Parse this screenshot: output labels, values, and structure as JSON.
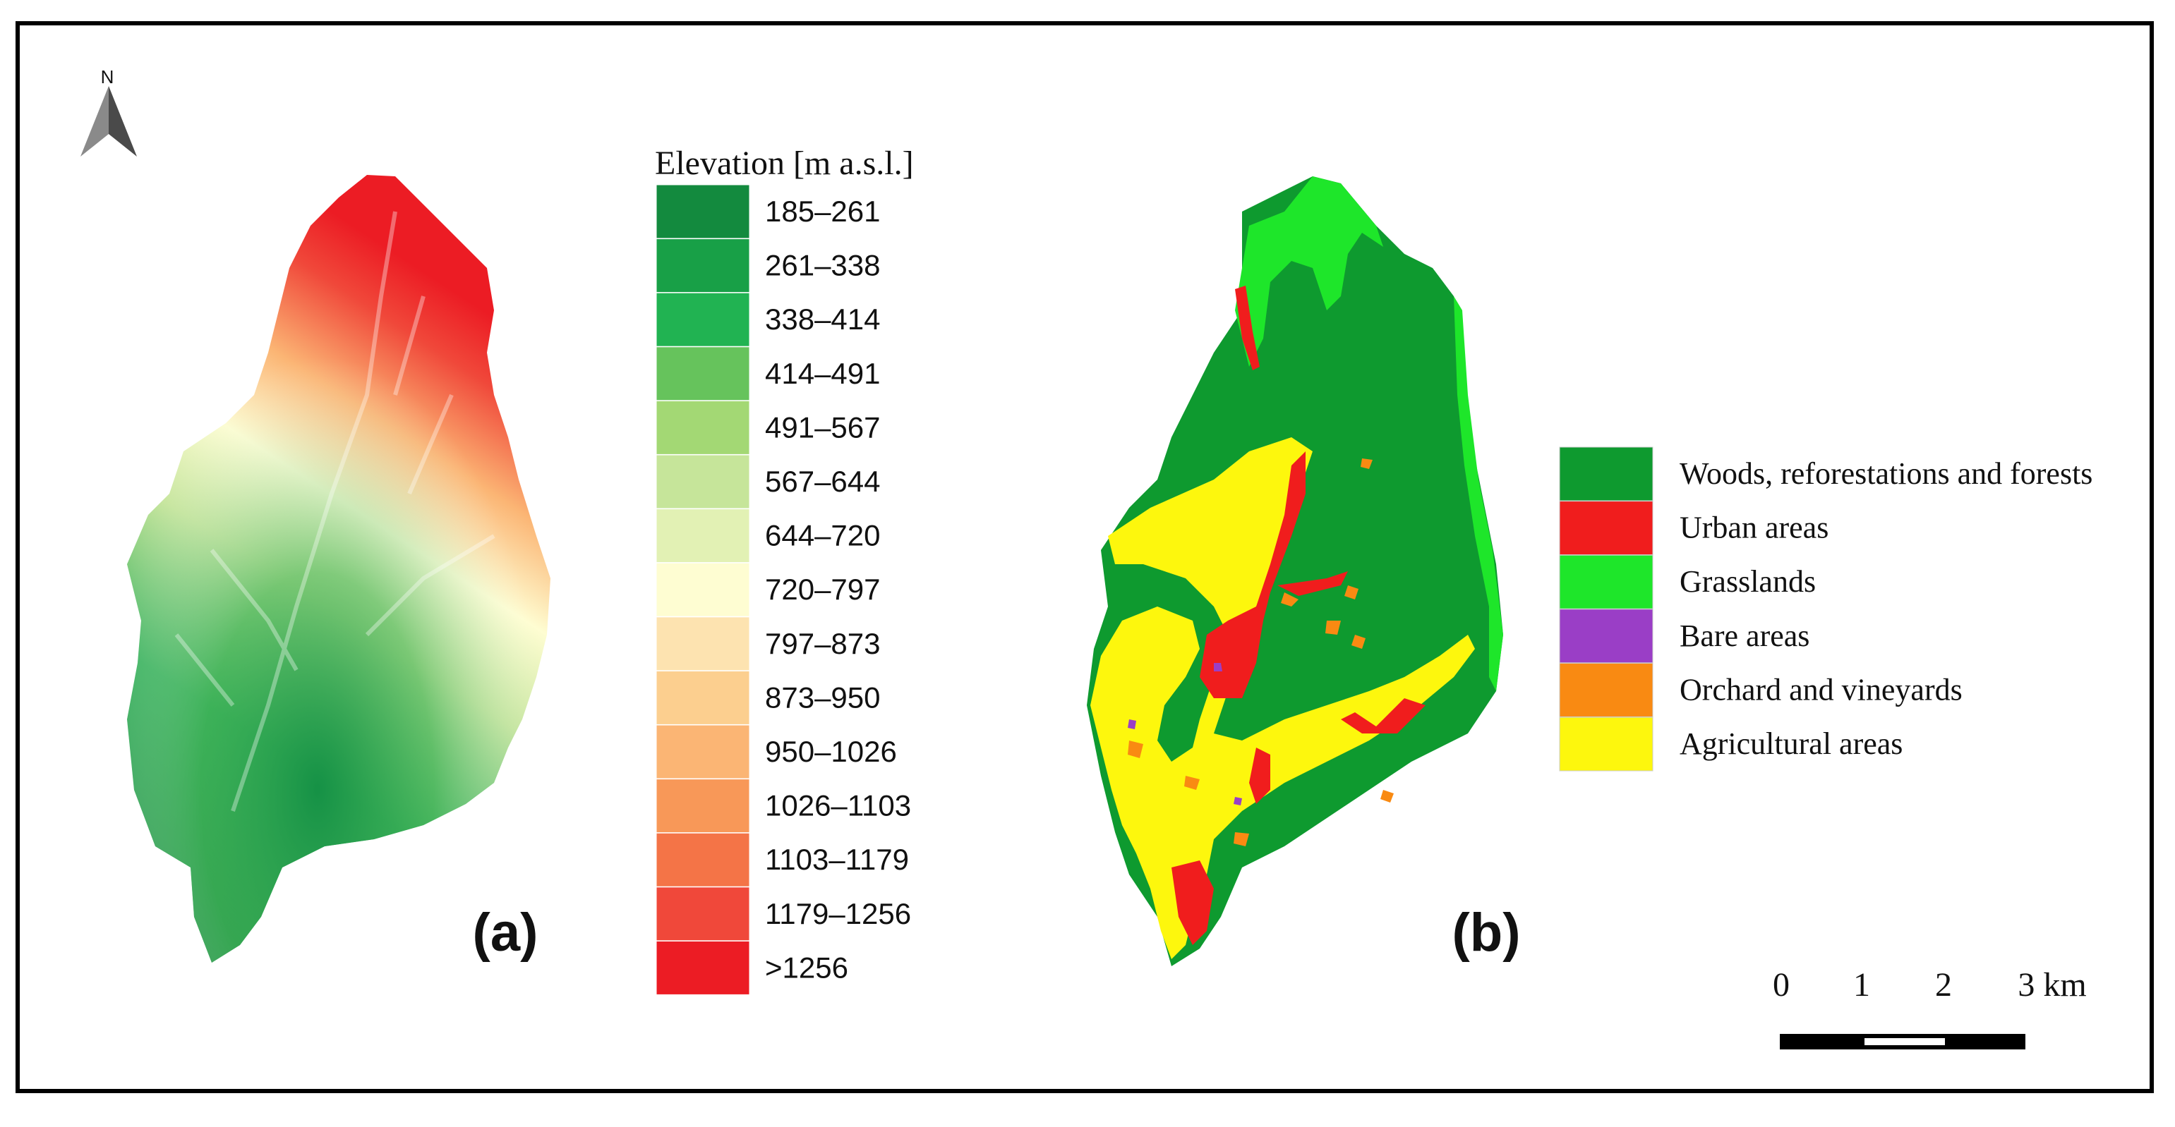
{
  "north_arrow": {
    "label": "N"
  },
  "panel_a": {
    "label": "(a)",
    "legend_title": "Elevation [m a.s.l.]",
    "classes": [
      {
        "label": "185–261",
        "color": "#138a3e"
      },
      {
        "label": "261–338",
        "color": "#18a047"
      },
      {
        "label": "338–414",
        "color": "#21b352"
      },
      {
        "label": "414–491",
        "color": "#66c35c"
      },
      {
        "label": "491–567",
        "color": "#a3d874"
      },
      {
        "label": "567–644",
        "color": "#c6e59a"
      },
      {
        "label": "644–720",
        "color": "#e2f1b4"
      },
      {
        "label": "720–797",
        "color": "#fefdd2"
      },
      {
        "label": "797–873",
        "color": "#fde3b0"
      },
      {
        "label": "873–950",
        "color": "#fccf8f"
      },
      {
        "label": "950–1026",
        "color": "#fbb574"
      },
      {
        "label": "1026–1103",
        "color": "#f89858"
      },
      {
        "label": "1103–1179",
        "color": "#f47447"
      },
      {
        "label": "1179–1256",
        "color": "#f0483a"
      },
      {
        "label": ">1256",
        "color": "#ec1c24"
      }
    ]
  },
  "panel_b": {
    "label": "(b)",
    "classes": [
      {
        "label": "Woods, reforestations and forests",
        "color": "#0e9a2f"
      },
      {
        "label": "Urban areas",
        "color": "#f01d1d"
      },
      {
        "label": "Grasslands",
        "color": "#1ee62a"
      },
      {
        "label": "Bare areas",
        "color": "#9a3ec6"
      },
      {
        "label": "Orchard and vineyards",
        "color": "#f98a12"
      },
      {
        "label": "Agricultural areas",
        "color": "#fdf70d"
      }
    ]
  },
  "scale_bar": {
    "ticks": [
      "0",
      "1",
      "2",
      "3 km"
    ]
  }
}
